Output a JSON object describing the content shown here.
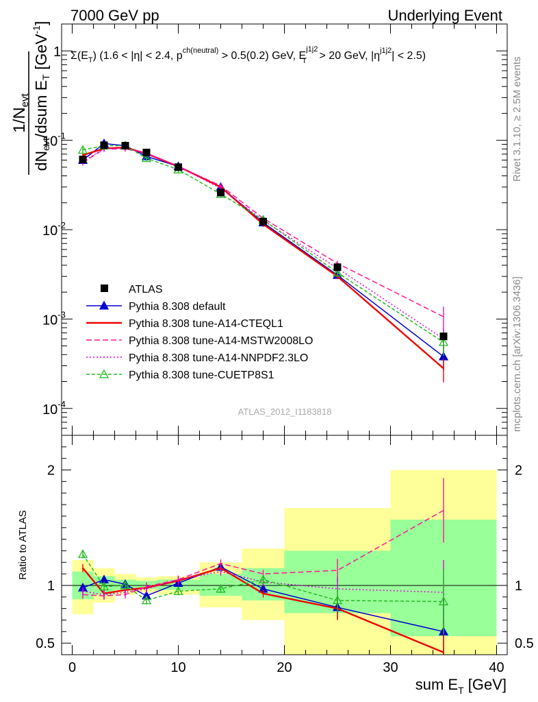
{
  "header": {
    "left": "7000 GeV pp",
    "right": "Underlying Event"
  },
  "side": {
    "rivet": "Rivet 3.1.10, ≥ 2.5M events",
    "mcplots": "mcplots.cern.ch [arXiv:1306.3436]"
  },
  "chart_data": [
    {
      "type": "line",
      "panel": "main",
      "ylabel": "1/N_evt dN_evt/dsum E_T [GeV^-1]",
      "yscale": "log",
      "ylim": [
        5e-05,
        2
      ],
      "xlim": [
        -1,
        41
      ],
      "x_ticks_major": [
        0,
        10,
        20,
        30,
        40
      ],
      "y_tick_labels": [
        "1",
        "10^-1",
        "10^-2",
        "10^-3",
        "10^-4"
      ],
      "annotation": {
        "line_prefix": "Σ(E",
        "line_sub1": "T",
        "line_mid1": ") (1.6 < |η| < 2.4, p",
        "line_sup1": "ch(neutral)",
        "line_mid2": " > 0.5(0.2) GeV, E",
        "line_sup2": "j1j2",
        "line_sub2": "T",
        "line_mid3": " > 20 GeV, |η",
        "line_sup3": "j1j2",
        "line_end": "| < 2.5)"
      },
      "watermark": "ATLAS_2012_I1183818",
      "x": [
        1,
        3,
        5,
        7,
        10,
        14,
        18,
        25,
        35
      ],
      "x_edges": [
        0,
        2,
        4,
        6,
        8,
        12,
        16,
        20,
        30,
        40
      ],
      "series": [
        {
          "name": "ATLAS",
          "style": "data",
          "color": "#000000",
          "values": [
            0.061,
            0.088,
            0.087,
            0.073,
            0.05,
            0.026,
            0.0123,
            0.0038,
            0.00064
          ]
        },
        {
          "name": "Pythia 8.308 default",
          "style": "solid-triangle",
          "color": "#0000cc",
          "values": [
            0.06,
            0.092,
            0.087,
            0.066,
            0.051,
            0.03,
            0.012,
            0.0031,
            0.00038
          ]
        },
        {
          "name": "Pythia 8.308 tune-A14-CTEQL1",
          "style": "solid-thick",
          "color": "#ee0000",
          "values": [
            0.068,
            0.081,
            0.083,
            0.071,
            0.051,
            0.03,
            0.0115,
            0.003,
            0.00028
          ]
        },
        {
          "name": "Pythia 8.308 tune-A14-MSTW2008LO",
          "style": "dashed",
          "color": "#ff1493",
          "values": [
            0.056,
            0.08,
            0.08,
            0.072,
            0.051,
            0.031,
            0.0134,
            0.0042,
            0.00106
          ]
        },
        {
          "name": "Pythia 8.308 tune-A14-NNPDF2.3LO",
          "style": "dotted",
          "color": "#dd00dd",
          "values": [
            0.058,
            0.08,
            0.082,
            0.071,
            0.051,
            0.029,
            0.0127,
            0.0037,
            0.0006
          ]
        },
        {
          "name": "Pythia 8.308 tune-CUETP8S1",
          "style": "dashed-open-triangle",
          "color": "#22bb22",
          "values": [
            0.078,
            0.087,
            0.087,
            0.063,
            0.047,
            0.025,
            0.0129,
            0.0033,
            0.00055
          ]
        }
      ]
    },
    {
      "type": "line",
      "panel": "ratio",
      "ylabel": "Ratio to ATLAS",
      "xlabel": "sum E_T [GeV]",
      "ylim": [
        0.4,
        2.3
      ],
      "y_ticks_labeled": [
        0.5,
        1,
        2
      ],
      "x": [
        1,
        3,
        5,
        7,
        10,
        14,
        18,
        25,
        35
      ],
      "x_edges": [
        0,
        2,
        4,
        6,
        8,
        12,
        16,
        20,
        30,
        40
      ],
      "band_inner": [
        [
          0.88,
          1.12
        ],
        [
          0.92,
          1.08
        ],
        [
          0.96,
          1.05
        ],
        [
          0.97,
          1.04
        ],
        [
          0.96,
          1.05
        ],
        [
          0.91,
          1.1
        ],
        [
          0.87,
          1.15
        ],
        [
          0.76,
          1.3
        ],
        [
          0.56,
          1.57
        ]
      ],
      "band_outer": [
        [
          0.75,
          1.22
        ],
        [
          0.85,
          1.15
        ],
        [
          0.92,
          1.1
        ],
        [
          0.94,
          1.07
        ],
        [
          0.92,
          1.08
        ],
        [
          0.81,
          1.2
        ],
        [
          0.7,
          1.32
        ],
        [
          0.38,
          1.67
        ],
        [
          0.35,
          2.0
        ]
      ],
      "series": [
        {
          "name": "Pythia 8.308 default",
          "color": "#0000cc",
          "values": [
            0.98,
            1.05,
            1.01,
            0.91,
            1.02,
            1.16,
            0.97,
            0.81,
            0.6
          ]
        },
        {
          "name": "Pythia 8.308 tune-A14-CTEQL1",
          "color": "#ee0000",
          "values": [
            1.15,
            0.93,
            0.96,
            0.98,
            1.04,
            1.15,
            0.93,
            0.8,
            0.42
          ]
        },
        {
          "name": "Pythia 8.308 tune-A14-MSTW2008LO",
          "color": "#ff1493",
          "values": [
            0.92,
            0.91,
            0.92,
            0.99,
            1.05,
            1.19,
            1.1,
            1.13,
            1.65
          ]
        },
        {
          "name": "Pythia 8.308 tune-A14-NNPDF2.3LO",
          "color": "#dd00dd",
          "values": [
            0.95,
            0.92,
            0.94,
            0.97,
            1.05,
            1.12,
            1.03,
            0.97,
            0.94
          ]
        },
        {
          "name": "Pythia 8.308 tune-CUETP8S1",
          "color": "#22bb22",
          "values": [
            1.27,
            0.99,
            1.0,
            0.87,
            0.95,
            0.97,
            1.05,
            0.87,
            0.86
          ]
        }
      ]
    }
  ]
}
